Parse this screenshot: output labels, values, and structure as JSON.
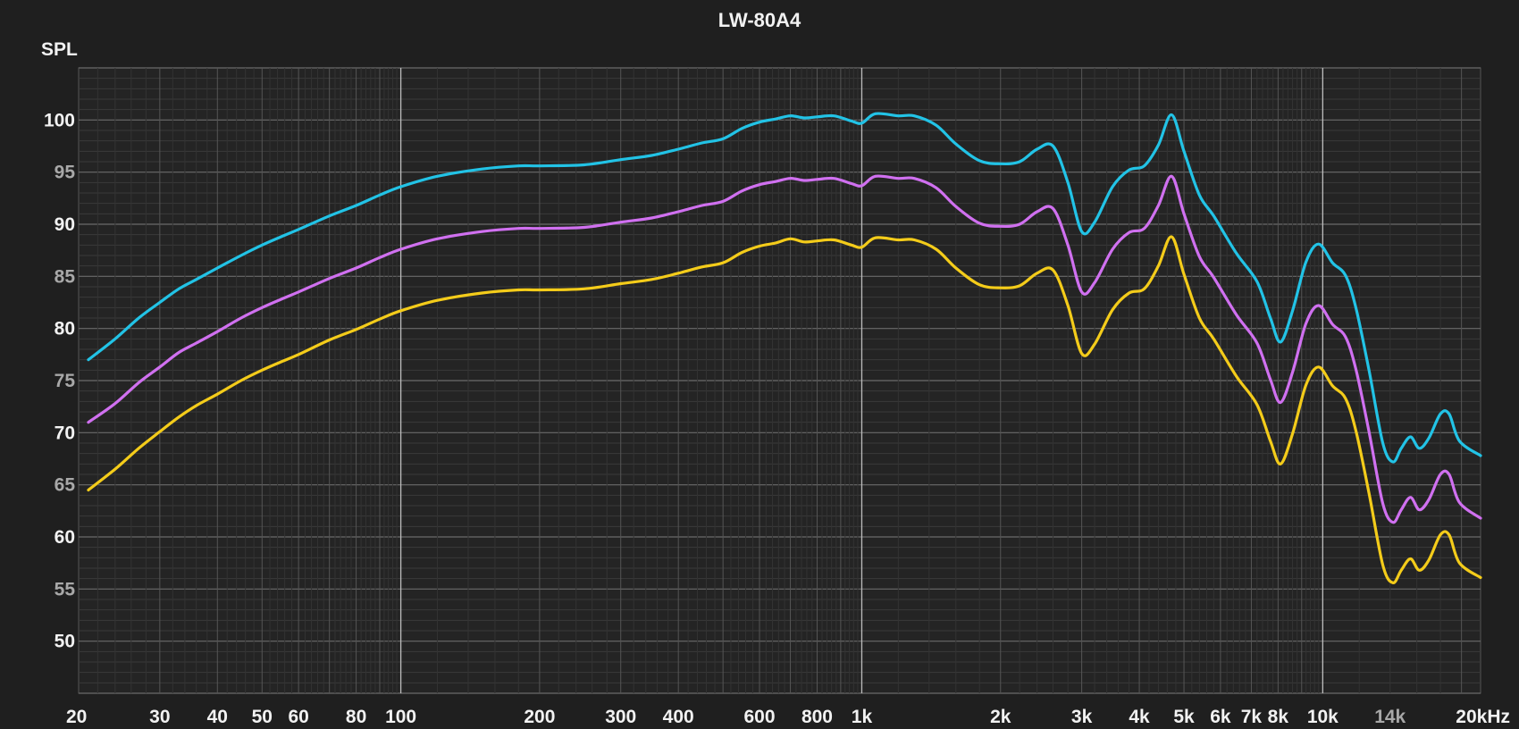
{
  "chart_data": {
    "type": "line",
    "title": "LW-80A4",
    "ylabel": "SPL",
    "xlabel": "",
    "xscale": "log",
    "xlim": [
      20,
      22000
    ],
    "ylim": [
      45,
      105
    ],
    "grid": true,
    "background": "#1f1f1f",
    "x_ticks": [
      {
        "value": 20,
        "label": "20"
      },
      {
        "value": 30,
        "label": "30"
      },
      {
        "value": 40,
        "label": "40"
      },
      {
        "value": 50,
        "label": "50"
      },
      {
        "value": 60,
        "label": "60"
      },
      {
        "value": 80,
        "label": "80"
      },
      {
        "value": 100,
        "label": "100"
      },
      {
        "value": 200,
        "label": "200"
      },
      {
        "value": 300,
        "label": "300"
      },
      {
        "value": 400,
        "label": "400"
      },
      {
        "value": 600,
        "label": "600"
      },
      {
        "value": 800,
        "label": "800"
      },
      {
        "value": 1000,
        "label": "1k"
      },
      {
        "value": 2000,
        "label": "2k"
      },
      {
        "value": 3000,
        "label": "3k"
      },
      {
        "value": 4000,
        "label": "4k"
      },
      {
        "value": 5000,
        "label": "5k"
      },
      {
        "value": 6000,
        "label": "6k"
      },
      {
        "value": 7000,
        "label": "7k"
      },
      {
        "value": 8000,
        "label": "8k"
      },
      {
        "value": 10000,
        "label": "10k"
      },
      {
        "value": 14000,
        "label": "14k",
        "dim": true
      },
      {
        "value": 20000,
        "label": "20kHz"
      }
    ],
    "y_ticks": [
      {
        "value": 100,
        "label": "100"
      },
      {
        "value": 95,
        "label": "95",
        "dim": true
      },
      {
        "value": 90,
        "label": "90"
      },
      {
        "value": 85,
        "label": "85",
        "dim": true
      },
      {
        "value": 80,
        "label": "80"
      },
      {
        "value": 75,
        "label": "75",
        "dim": true
      },
      {
        "value": 70,
        "label": "70"
      },
      {
        "value": 65,
        "label": "65",
        "dim": true
      },
      {
        "value": 60,
        "label": "60"
      },
      {
        "value": 55,
        "label": "55",
        "dim": true
      },
      {
        "value": 50,
        "label": "50"
      }
    ],
    "series": [
      {
        "color": "#22c3e6",
        "points": [
          [
            21,
            77
          ],
          [
            24,
            79
          ],
          [
            27,
            81
          ],
          [
            30,
            82.5
          ],
          [
            33,
            83.8
          ],
          [
            36,
            84.7
          ],
          [
            40,
            85.8
          ],
          [
            45,
            87
          ],
          [
            50,
            88
          ],
          [
            55,
            88.8
          ],
          [
            60,
            89.5
          ],
          [
            70,
            90.8
          ],
          [
            80,
            91.8
          ],
          [
            90,
            92.8
          ],
          [
            100,
            93.6
          ],
          [
            120,
            94.6
          ],
          [
            150,
            95.3
          ],
          [
            180,
            95.6
          ],
          [
            200,
            95.6
          ],
          [
            250,
            95.7
          ],
          [
            300,
            96.2
          ],
          [
            350,
            96.6
          ],
          [
            400,
            97.2
          ],
          [
            450,
            97.8
          ],
          [
            500,
            98.2
          ],
          [
            550,
            99.2
          ],
          [
            600,
            99.8
          ],
          [
            650,
            100.1
          ],
          [
            700,
            100.4
          ],
          [
            750,
            100.2
          ],
          [
            800,
            100.3
          ],
          [
            870,
            100.4
          ],
          [
            950,
            99.9
          ],
          [
            1000,
            99.7
          ],
          [
            1070,
            100.6
          ],
          [
            1200,
            100.4
          ],
          [
            1300,
            100.4
          ],
          [
            1450,
            99.5
          ],
          [
            1600,
            97.7
          ],
          [
            1800,
            96.1
          ],
          [
            2000,
            95.8
          ],
          [
            2200,
            96
          ],
          [
            2400,
            97.2
          ],
          [
            2600,
            97.5
          ],
          [
            2800,
            94
          ],
          [
            3000,
            89.3
          ],
          [
            3200,
            90.2
          ],
          [
            3500,
            93.6
          ],
          [
            3800,
            95.2
          ],
          [
            4100,
            95.6
          ],
          [
            4400,
            97.6
          ],
          [
            4700,
            100.5
          ],
          [
            5000,
            97
          ],
          [
            5400,
            92.8
          ],
          [
            5800,
            90.8
          ],
          [
            6500,
            87.2
          ],
          [
            7200,
            84.5
          ],
          [
            7700,
            81
          ],
          [
            8100,
            78.7
          ],
          [
            8600,
            81.7
          ],
          [
            9200,
            86.4
          ],
          [
            9800,
            88.1
          ],
          [
            10500,
            86.3
          ],
          [
            11200,
            85.1
          ],
          [
            11800,
            82
          ],
          [
            12600,
            76
          ],
          [
            13500,
            69
          ],
          [
            14200,
            67.2
          ],
          [
            14800,
            68.5
          ],
          [
            15500,
            69.6
          ],
          [
            16200,
            68.5
          ],
          [
            17000,
            69.5
          ],
          [
            18000,
            71.8
          ],
          [
            18800,
            71.8
          ],
          [
            19800,
            69.2
          ],
          [
            22000,
            67.8
          ]
        ]
      },
      {
        "color": "#d070f0",
        "points": [
          [
            21,
            71
          ],
          [
            24,
            72.8
          ],
          [
            27,
            74.8
          ],
          [
            30,
            76.3
          ],
          [
            33,
            77.7
          ],
          [
            36,
            78.6
          ],
          [
            40,
            79.7
          ],
          [
            45,
            81
          ],
          [
            50,
            82
          ],
          [
            55,
            82.8
          ],
          [
            60,
            83.5
          ],
          [
            70,
            84.8
          ],
          [
            80,
            85.8
          ],
          [
            90,
            86.8
          ],
          [
            100,
            87.6
          ],
          [
            120,
            88.6
          ],
          [
            150,
            89.3
          ],
          [
            180,
            89.6
          ],
          [
            200,
            89.6
          ],
          [
            250,
            89.7
          ],
          [
            300,
            90.2
          ],
          [
            350,
            90.6
          ],
          [
            400,
            91.2
          ],
          [
            450,
            91.8
          ],
          [
            500,
            92.2
          ],
          [
            550,
            93.2
          ],
          [
            600,
            93.8
          ],
          [
            650,
            94.1
          ],
          [
            700,
            94.4
          ],
          [
            750,
            94.2
          ],
          [
            800,
            94.3
          ],
          [
            870,
            94.4
          ],
          [
            950,
            93.9
          ],
          [
            1000,
            93.7
          ],
          [
            1070,
            94.6
          ],
          [
            1200,
            94.4
          ],
          [
            1300,
            94.4
          ],
          [
            1450,
            93.5
          ],
          [
            1600,
            91.7
          ],
          [
            1800,
            90.1
          ],
          [
            2000,
            89.8
          ],
          [
            2200,
            90
          ],
          [
            2400,
            91.2
          ],
          [
            2600,
            91.5
          ],
          [
            2800,
            88
          ],
          [
            3000,
            83.5
          ],
          [
            3200,
            84.4
          ],
          [
            3500,
            87.6
          ],
          [
            3800,
            89.2
          ],
          [
            4100,
            89.6
          ],
          [
            4400,
            91.8
          ],
          [
            4700,
            94.6
          ],
          [
            5000,
            91
          ],
          [
            5400,
            86.9
          ],
          [
            5800,
            84.9
          ],
          [
            6500,
            81.3
          ],
          [
            7200,
            78.6
          ],
          [
            7700,
            75.1
          ],
          [
            8100,
            72.9
          ],
          [
            8600,
            75.8
          ],
          [
            9200,
            80.5
          ],
          [
            9800,
            82.2
          ],
          [
            10500,
            80.4
          ],
          [
            11200,
            79.2
          ],
          [
            11800,
            76.1
          ],
          [
            12600,
            70.1
          ],
          [
            13500,
            63.2
          ],
          [
            14200,
            61.4
          ],
          [
            14800,
            62.6
          ],
          [
            15500,
            63.8
          ],
          [
            16200,
            62.6
          ],
          [
            17000,
            63.6
          ],
          [
            18000,
            66
          ],
          [
            18800,
            66
          ],
          [
            19800,
            63.3
          ],
          [
            22000,
            61.8
          ]
        ]
      },
      {
        "color": "#f4cc1a",
        "points": [
          [
            21,
            64.5
          ],
          [
            24,
            66.5
          ],
          [
            27,
            68.5
          ],
          [
            30,
            70.1
          ],
          [
            33,
            71.5
          ],
          [
            36,
            72.6
          ],
          [
            40,
            73.7
          ],
          [
            45,
            75
          ],
          [
            50,
            76
          ],
          [
            55,
            76.8
          ],
          [
            60,
            77.5
          ],
          [
            70,
            78.9
          ],
          [
            80,
            79.9
          ],
          [
            90,
            80.9
          ],
          [
            100,
            81.7
          ],
          [
            120,
            82.7
          ],
          [
            150,
            83.4
          ],
          [
            180,
            83.7
          ],
          [
            200,
            83.7
          ],
          [
            250,
            83.8
          ],
          [
            300,
            84.3
          ],
          [
            350,
            84.7
          ],
          [
            400,
            85.3
          ],
          [
            450,
            85.9
          ],
          [
            500,
            86.3
          ],
          [
            550,
            87.3
          ],
          [
            600,
            87.9
          ],
          [
            650,
            88.2
          ],
          [
            700,
            88.6
          ],
          [
            750,
            88.3
          ],
          [
            800,
            88.4
          ],
          [
            870,
            88.5
          ],
          [
            950,
            88
          ],
          [
            1000,
            87.8
          ],
          [
            1070,
            88.7
          ],
          [
            1200,
            88.5
          ],
          [
            1300,
            88.5
          ],
          [
            1450,
            87.6
          ],
          [
            1600,
            85.8
          ],
          [
            1800,
            84.2
          ],
          [
            2000,
            83.9
          ],
          [
            2200,
            84.1
          ],
          [
            2400,
            85.3
          ],
          [
            2600,
            85.6
          ],
          [
            2800,
            82.2
          ],
          [
            3000,
            77.6
          ],
          [
            3200,
            78.5
          ],
          [
            3500,
            81.8
          ],
          [
            3800,
            83.4
          ],
          [
            4100,
            83.8
          ],
          [
            4400,
            86
          ],
          [
            4700,
            88.8
          ],
          [
            5000,
            85.2
          ],
          [
            5400,
            81
          ],
          [
            5800,
            79
          ],
          [
            6500,
            75.4
          ],
          [
            7200,
            72.7
          ],
          [
            7700,
            69.2
          ],
          [
            8100,
            67
          ],
          [
            8600,
            69.9
          ],
          [
            9200,
            74.6
          ],
          [
            9800,
            76.3
          ],
          [
            10500,
            74.5
          ],
          [
            11200,
            73.3
          ],
          [
            11800,
            70.2
          ],
          [
            12600,
            64.2
          ],
          [
            13500,
            57.3
          ],
          [
            14200,
            55.6
          ],
          [
            14800,
            56.8
          ],
          [
            15500,
            57.9
          ],
          [
            16200,
            56.8
          ],
          [
            17000,
            57.8
          ],
          [
            18000,
            60.2
          ],
          [
            18800,
            60.2
          ],
          [
            19800,
            57.5
          ],
          [
            22000,
            56.1
          ]
        ]
      }
    ]
  }
}
